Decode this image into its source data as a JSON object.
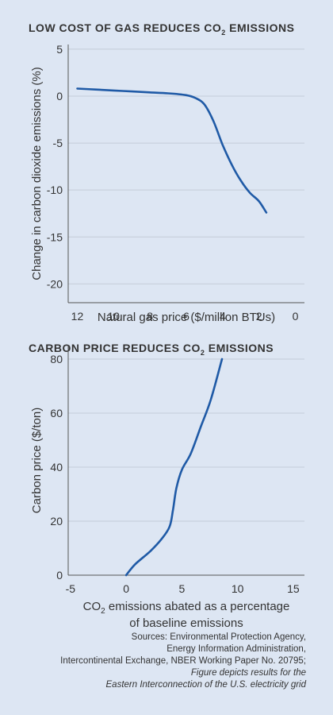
{
  "chart_data": [
    {
      "type": "line",
      "title_parts": [
        "LOW COST OF GAS REDUCES CO",
        "2",
        " EMISSIONS"
      ],
      "xlabel": "Natural gas price ($/million BTUs)",
      "ylabel": "Change in carbon dioxide emissions (%)",
      "xlim": [
        12.5,
        -0.5
      ],
      "ylim": [
        -22,
        5.5
      ],
      "xticks": [
        "12",
        "10",
        "8",
        "6",
        "4",
        "2",
        "0"
      ],
      "xtick_values": [
        12,
        10,
        8,
        6,
        4,
        2,
        0
      ],
      "yticks": [
        "5",
        "0",
        "-5",
        "-10",
        "-15",
        "-20"
      ],
      "ytick_values": [
        5,
        0,
        -5,
        -10,
        -15,
        -20
      ],
      "grid": "horizontal",
      "series": [
        {
          "color": "#1f5aa6",
          "points": [
            [
              12,
              0.8
            ],
            [
              11,
              0.7
            ],
            [
              10,
              0.6
            ],
            [
              9,
              0.5
            ],
            [
              8,
              0.4
            ],
            [
              7,
              0.3
            ],
            [
              6,
              0.1
            ],
            [
              5.5,
              -0.2
            ],
            [
              5,
              -0.9
            ],
            [
              4.5,
              -2.7
            ],
            [
              4,
              -5.2
            ],
            [
              3.5,
              -7.3
            ],
            [
              3,
              -9.0
            ],
            [
              2.5,
              -10.3
            ],
            [
              2,
              -11.2
            ],
            [
              1.6,
              -12.4
            ]
          ]
        }
      ]
    },
    {
      "type": "line",
      "title_parts": [
        "CARBON PRICE REDUCES CO",
        "2",
        " EMISSIONS"
      ],
      "xlabel_line1_parts": [
        "CO",
        "2",
        " emissions abated as a percentage"
      ],
      "xlabel_line2": "of baseline emissions",
      "ylabel": "Carbon price ($/ton)",
      "xlim": [
        -5.2,
        16
      ],
      "ylim": [
        0,
        85
      ],
      "xticks": [
        "-5",
        "0",
        "5",
        "10",
        "15"
      ],
      "xtick_values": [
        -5,
        0,
        5,
        10,
        15
      ],
      "yticks": [
        "0",
        "20",
        "40",
        "60",
        "80"
      ],
      "ytick_values": [
        0,
        20,
        40,
        60,
        80
      ],
      "grid": "horizontal",
      "series": [
        {
          "color": "#1f5aa6",
          "points": [
            [
              0,
              0
            ],
            [
              0.8,
              4
            ],
            [
              2.2,
              9
            ],
            [
              3.2,
              13.5
            ],
            [
              3.9,
              18
            ],
            [
              4.2,
              24
            ],
            [
              4.5,
              32
            ],
            [
              5.0,
              39
            ],
            [
              5.8,
              45
            ],
            [
              6.7,
              55
            ],
            [
              7.6,
              65
            ],
            [
              8.6,
              80
            ]
          ]
        }
      ]
    }
  ],
  "sources": {
    "line1": "Sources: Environmental Protection Agency,",
    "line2": "Energy Information Administration,",
    "line3": "Intercontinental Exchange, NBER Working Paper No. 20795;",
    "line4": "Figure depicts results for the",
    "line5": "Eastern Interconnection of the U.S. electricity grid"
  }
}
